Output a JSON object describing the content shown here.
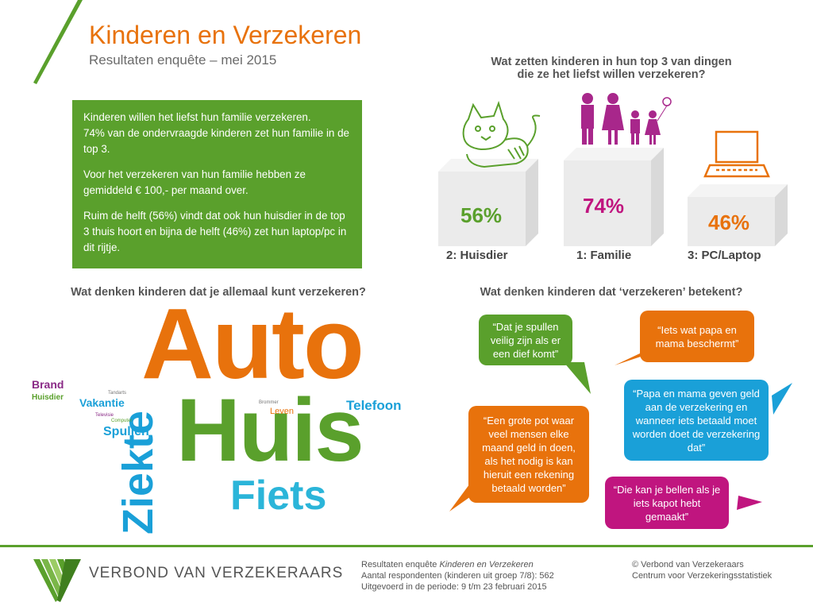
{
  "header": {
    "title": "Kinderen en Verzekeren",
    "subtitle": "Resultaten enquête – mei 2015"
  },
  "summary": {
    "p1_line1": "Kinderen willen het liefst hun familie verzekeren.",
    "p1_line2": "74% van de ondervraagde kinderen zet hun familie in de top 3.",
    "p2": "Voor het verzekeren van hun familie hebben ze gemiddeld € 100,- per maand over.",
    "p3": "Ruim de helft (56%) vindt dat ook hun huisdier in de top 3 thuis hoort en bijna de helft (46%) zet hun laptop/pc in dit rijtje."
  },
  "top3": {
    "question_line1": "Wat zetten kinderen in hun top 3 van dingen",
    "question_line2": "die ze het liefst willen verzekeren?",
    "items": [
      {
        "label": "2: Huisdier",
        "percent": "56%",
        "color": "#5aa02c",
        "icon": "cat-icon"
      },
      {
        "label": "1: Familie",
        "percent": "74%",
        "color": "#c0157f",
        "icon": "family-icon"
      },
      {
        "label": "3: PC/Laptop",
        "percent": "46%",
        "color": "#e8720c",
        "icon": "laptop-icon"
      }
    ]
  },
  "wordcloud": {
    "question": "Wat denken kinderen dat je allemaal kunt verzekeren?",
    "words": {
      "auto": "Auto",
      "huis": "Huis",
      "ziekte": "Ziekte",
      "fiets": "Fiets",
      "telefoon": "Telefoon",
      "spullen": "Spullen",
      "vakantie": "Vakantie",
      "brand": "Brand",
      "huisdier": "Huisdier",
      "tandarts": "Tandarts",
      "televisie": "Televisie",
      "computer": "Computer",
      "brommer": "Brommer",
      "leven": "Leven"
    }
  },
  "meaning": {
    "question": "Wat denken kinderen dat ‘verzekeren’ betekent?",
    "quotes": [
      {
        "text": "“Dat je spullen veilig zijn als er een dief komt”",
        "color": "#5aa02c"
      },
      {
        "text": "“Iets wat papa en mama beschermt”",
        "color": "#e8720c"
      },
      {
        "text": "“Papa en mama geven geld aan de verzekering en wanneer iets betaald moet worden doet de verzekering dat”",
        "color": "#1aa0d8"
      },
      {
        "text": "“Een grote pot waar veel mensen elke maand geld in doen, als het nodig is kan hieruit een rekening betaald worden”",
        "color": "#e8720c"
      },
      {
        "text": "“Die kan je bellen als je iets kapot hebt gemaakt”",
        "color": "#c0157f"
      }
    ]
  },
  "footer": {
    "logo_text": "VERBOND VAN VERZEKERAARS",
    "survey_prefix": "Resultaten enquête ",
    "survey_title": "Kinderen en Verzekeren",
    "respondents": "Aantal respondenten (kinderen uit groep 7/8): 562",
    "period": "Uitgevoerd in de periode: 9 t/m 23 februari 2015",
    "copyright": "© Verbond van Verzekeraars",
    "centre": "Centrum voor Verzekeringsstatistiek"
  },
  "colors": {
    "green": "#5aa02c",
    "orange": "#e8720c",
    "magenta": "#c0157f",
    "blue": "#1aa0d8"
  }
}
